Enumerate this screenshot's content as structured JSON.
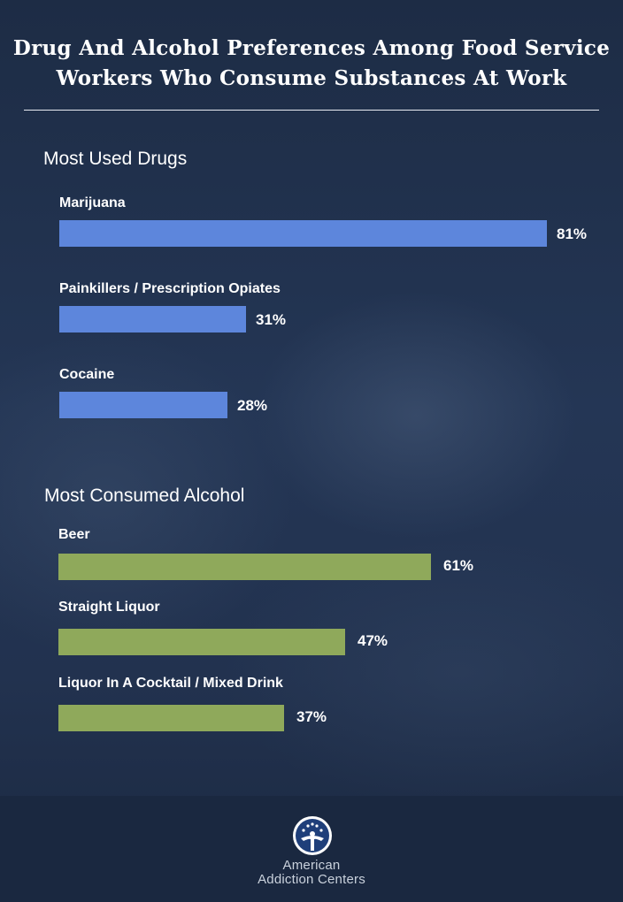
{
  "chart_data": {
    "type": "bar",
    "orientation": "horizontal",
    "title": "Drug And Alcohol Preferences Among Food Service Workers Who Consume Substances At Work",
    "groups": [
      {
        "name": "Most Used Drugs",
        "color": "#5d86dc",
        "categories": [
          "Marijuana",
          "Painkillers / Prescription Opiates",
          "Cocaine"
        ],
        "values": [
          81,
          31,
          28
        ],
        "value_labels": [
          "81%",
          "31%",
          "28%"
        ]
      },
      {
        "name": "Most Consumed Alcohol",
        "color": "#8fa95b",
        "categories": [
          "Beer",
          "Straight Liquor",
          "Liquor In A Cocktail / Mixed Drink"
        ],
        "values": [
          61,
          47,
          37
        ],
        "value_labels": [
          "61%",
          "47%",
          "37%"
        ]
      }
    ],
    "unit": "%",
    "grid": false
  },
  "footer": {
    "logo_icon": "american-addiction-centers-logo-icon",
    "brand_line1": "American",
    "brand_line2": "Addiction Centers"
  }
}
